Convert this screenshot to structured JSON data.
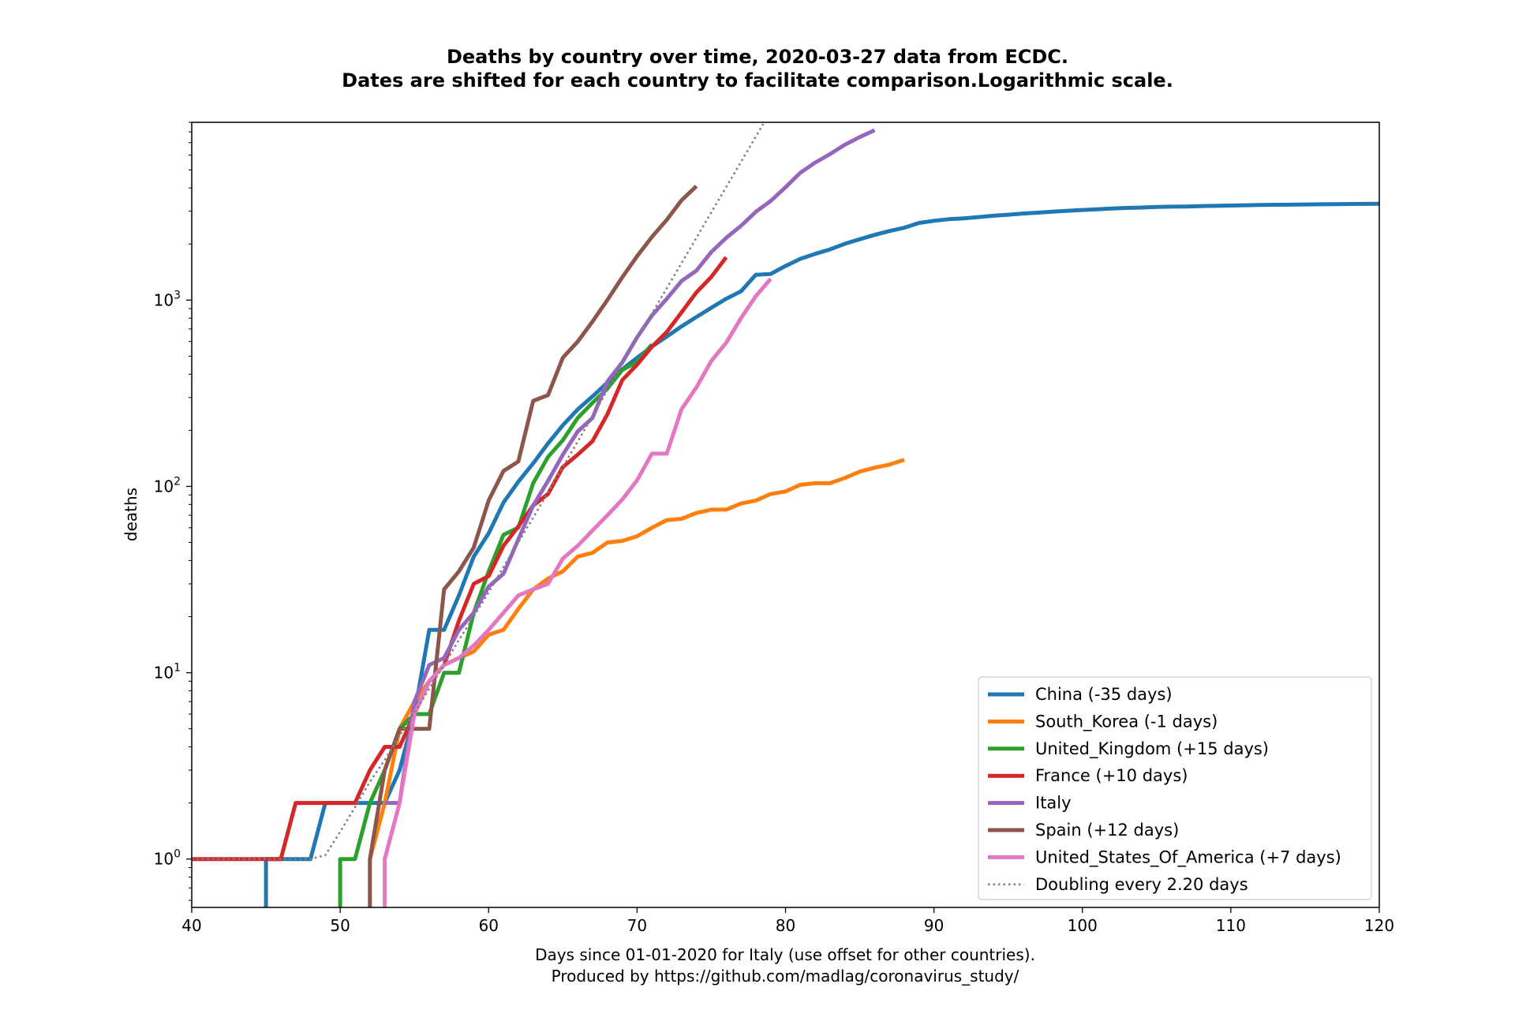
{
  "chart_data": {
    "type": "line",
    "title_line1": "Deaths by country over time, 2020-03-27 data from ECDC.",
    "title_line2": "Dates are shifted for each country to facilitate comparison.Logarithmic scale.",
    "xlabel_line1": "Days since 01-01-2020 for Italy (use offset for other countries).",
    "xlabel_line2": "Produced by https://github.com/madlag/coronavirus_study/",
    "ylabel": "deaths",
    "xlim": [
      40,
      120
    ],
    "ylim": [
      0.55,
      9000
    ],
    "yscale": "log",
    "xticks": [
      40,
      50,
      60,
      70,
      80,
      90,
      100,
      110,
      120
    ],
    "yticks": [
      {
        "value": 1,
        "base": "10",
        "exp": "0"
      },
      {
        "value": 10,
        "base": "10",
        "exp": "1"
      },
      {
        "value": 100,
        "base": "10",
        "exp": "2"
      },
      {
        "value": 1000,
        "base": "10",
        "exp": "3"
      }
    ],
    "legend_position": "lower-right",
    "series": [
      {
        "name": "China (-35 days)",
        "color": "#1f77b4",
        "style": "solid",
        "points": [
          [
            45,
            0.1
          ],
          [
            45,
            1
          ],
          [
            46,
            1
          ],
          [
            47,
            1
          ],
          [
            48,
            1
          ],
          [
            49,
            2
          ],
          [
            50,
            2
          ],
          [
            51,
            2
          ],
          [
            52,
            2
          ],
          [
            53,
            2
          ],
          [
            54,
            3
          ],
          [
            55,
            6
          ],
          [
            56,
            17
          ],
          [
            57,
            17
          ],
          [
            58,
            26
          ],
          [
            59,
            42
          ],
          [
            60,
            56
          ],
          [
            61,
            82
          ],
          [
            62,
            106
          ],
          [
            63,
            133
          ],
          [
            64,
            170
          ],
          [
            65,
            213
          ],
          [
            66,
            259
          ],
          [
            67,
            304
          ],
          [
            68,
            361
          ],
          [
            69,
            425
          ],
          [
            70,
            490
          ],
          [
            71,
            563
          ],
          [
            72,
            637
          ],
          [
            73,
            723
          ],
          [
            74,
            812
          ],
          [
            75,
            909
          ],
          [
            76,
            1017
          ],
          [
            77,
            1114
          ],
          [
            78,
            1368
          ],
          [
            79,
            1381
          ],
          [
            80,
            1524
          ],
          [
            81,
            1666
          ],
          [
            82,
            1772
          ],
          [
            83,
            1870
          ],
          [
            84,
            2006
          ],
          [
            85,
            2121
          ],
          [
            86,
            2239
          ],
          [
            87,
            2348
          ],
          [
            88,
            2445
          ],
          [
            89,
            2595
          ],
          [
            90,
            2666
          ],
          [
            91,
            2718
          ],
          [
            92,
            2747
          ],
          [
            93,
            2791
          ],
          [
            94,
            2838
          ],
          [
            95,
            2873
          ],
          [
            96,
            2915
          ],
          [
            97,
            2946
          ],
          [
            98,
            2984
          ],
          [
            99,
            3015
          ],
          [
            100,
            3045
          ],
          [
            101,
            3073
          ],
          [
            102,
            3100
          ],
          [
            103,
            3123
          ],
          [
            104,
            3140
          ],
          [
            105,
            3162
          ],
          [
            106,
            3173
          ],
          [
            107,
            3180
          ],
          [
            108,
            3194
          ],
          [
            109,
            3204
          ],
          [
            110,
            3218
          ],
          [
            111,
            3231
          ],
          [
            112,
            3242
          ],
          [
            113,
            3250
          ],
          [
            114,
            3253
          ],
          [
            115,
            3261
          ],
          [
            116,
            3267
          ],
          [
            117,
            3271
          ],
          [
            118,
            3280
          ],
          [
            119,
            3283
          ],
          [
            120,
            3290
          ]
        ]
      },
      {
        "name": "South_Korea (-1 days)",
        "color": "#ff7f0e",
        "style": "solid",
        "points": [
          [
            52,
            1
          ],
          [
            53,
            2
          ],
          [
            54,
            5
          ],
          [
            55,
            7
          ],
          [
            56,
            9
          ],
          [
            57,
            11
          ],
          [
            58,
            12
          ],
          [
            59,
            13
          ],
          [
            60,
            16
          ],
          [
            61,
            17
          ],
          [
            62,
            22
          ],
          [
            63,
            28
          ],
          [
            64,
            32
          ],
          [
            65,
            35
          ],
          [
            66,
            42
          ],
          [
            67,
            44
          ],
          [
            68,
            50
          ],
          [
            69,
            51
          ],
          [
            70,
            54
          ],
          [
            71,
            60
          ],
          [
            72,
            66
          ],
          [
            73,
            67
          ],
          [
            74,
            72
          ],
          [
            75,
            75
          ],
          [
            76,
            75
          ],
          [
            77,
            81
          ],
          [
            78,
            84
          ],
          [
            79,
            91
          ],
          [
            80,
            94
          ],
          [
            81,
            102
          ],
          [
            82,
            104
          ],
          [
            83,
            104
          ],
          [
            84,
            111
          ],
          [
            85,
            120
          ],
          [
            86,
            126
          ],
          [
            87,
            131
          ],
          [
            88,
            139
          ]
        ]
      },
      {
        "name": "United_Kingdom (+15 days)",
        "color": "#2ca02c",
        "style": "solid",
        "points": [
          [
            50,
            0.1
          ],
          [
            50,
            1
          ],
          [
            51,
            1
          ],
          [
            52,
            2
          ],
          [
            53,
            3
          ],
          [
            54,
            5
          ],
          [
            55,
            6
          ],
          [
            56,
            6
          ],
          [
            57,
            10
          ],
          [
            58,
            10
          ],
          [
            59,
            21
          ],
          [
            60,
            35
          ],
          [
            61,
            55
          ],
          [
            62,
            60
          ],
          [
            63,
            104
          ],
          [
            64,
            144
          ],
          [
            65,
            177
          ],
          [
            66,
            233
          ],
          [
            67,
            281
          ],
          [
            68,
            335
          ],
          [
            69,
            422
          ],
          [
            70,
            465
          ],
          [
            71,
            578
          ]
        ]
      },
      {
        "name": "France (+10 days)",
        "color": "#d62728",
        "style": "solid",
        "points": [
          [
            40,
            1
          ],
          [
            41,
            1
          ],
          [
            42,
            1
          ],
          [
            43,
            1
          ],
          [
            44,
            1
          ],
          [
            45,
            1
          ],
          [
            46,
            1
          ],
          [
            47,
            2
          ],
          [
            48,
            2
          ],
          [
            49,
            2
          ],
          [
            50,
            2
          ],
          [
            51,
            2
          ],
          [
            52,
            3
          ],
          [
            53,
            4
          ],
          [
            54,
            4
          ],
          [
            55,
            6
          ],
          [
            56,
            9
          ],
          [
            57,
            11
          ],
          [
            58,
            19
          ],
          [
            59,
            30
          ],
          [
            60,
            33
          ],
          [
            61,
            48
          ],
          [
            62,
            61
          ],
          [
            63,
            79
          ],
          [
            64,
            91
          ],
          [
            65,
            127
          ],
          [
            66,
            148
          ],
          [
            67,
            175
          ],
          [
            68,
            244
          ],
          [
            69,
            372
          ],
          [
            70,
            450
          ],
          [
            71,
            562
          ],
          [
            72,
            674
          ],
          [
            73,
            860
          ],
          [
            74,
            1100
          ],
          [
            75,
            1331
          ],
          [
            76,
            1696
          ]
        ]
      },
      {
        "name": "Italy",
        "color": "#9467bd",
        "style": "solid",
        "points": [
          [
            53,
            2
          ],
          [
            54,
            2
          ],
          [
            55,
            7
          ],
          [
            56,
            11
          ],
          [
            57,
            12
          ],
          [
            58,
            17
          ],
          [
            59,
            21
          ],
          [
            60,
            29
          ],
          [
            61,
            34
          ],
          [
            62,
            52
          ],
          [
            63,
            79
          ],
          [
            64,
            107
          ],
          [
            65,
            148
          ],
          [
            66,
            197
          ],
          [
            67,
            233
          ],
          [
            68,
            366
          ],
          [
            69,
            463
          ],
          [
            70,
            631
          ],
          [
            71,
            827
          ],
          [
            72,
            1016
          ],
          [
            73,
            1266
          ],
          [
            74,
            1441
          ],
          [
            75,
            1809
          ],
          [
            76,
            2158
          ],
          [
            77,
            2503
          ],
          [
            78,
            2978
          ],
          [
            79,
            3405
          ],
          [
            80,
            4032
          ],
          [
            81,
            4825
          ],
          [
            82,
            5476
          ],
          [
            83,
            6077
          ],
          [
            84,
            6820
          ],
          [
            85,
            7503
          ],
          [
            86,
            8165
          ]
        ]
      },
      {
        "name": "Spain (+12 days)",
        "color": "#8c564b",
        "style": "solid",
        "points": [
          [
            52,
            0.1
          ],
          [
            52,
            1
          ],
          [
            53,
            3
          ],
          [
            54,
            5
          ],
          [
            55,
            5
          ],
          [
            56,
            5
          ],
          [
            57,
            28
          ],
          [
            58,
            35
          ],
          [
            59,
            47
          ],
          [
            60,
            84
          ],
          [
            61,
            121
          ],
          [
            62,
            136
          ],
          [
            63,
            288
          ],
          [
            64,
            309
          ],
          [
            65,
            491
          ],
          [
            66,
            598
          ],
          [
            67,
            767
          ],
          [
            68,
            1002
          ],
          [
            69,
            1326
          ],
          [
            70,
            1720
          ],
          [
            71,
            2182
          ],
          [
            72,
            2696
          ],
          [
            73,
            3434
          ],
          [
            74,
            4089
          ]
        ]
      },
      {
        "name": "United_States_Of_America (+7 days)",
        "color": "#e377c2",
        "style": "solid",
        "points": [
          [
            53,
            0.1
          ],
          [
            53,
            1
          ],
          [
            54,
            2
          ],
          [
            55,
            6
          ],
          [
            56,
            9
          ],
          [
            57,
            11
          ],
          [
            58,
            12
          ],
          [
            59,
            14
          ],
          [
            60,
            17
          ],
          [
            61,
            21
          ],
          [
            62,
            26
          ],
          [
            63,
            28
          ],
          [
            64,
            30
          ],
          [
            65,
            41
          ],
          [
            66,
            48
          ],
          [
            67,
            58
          ],
          [
            68,
            70
          ],
          [
            69,
            85
          ],
          [
            70,
            108
          ],
          [
            71,
            150
          ],
          [
            72,
            150
          ],
          [
            73,
            260
          ],
          [
            74,
            340
          ],
          [
            75,
            471
          ],
          [
            76,
            590
          ],
          [
            77,
            800
          ],
          [
            78,
            1050
          ],
          [
            79,
            1300
          ]
        ]
      },
      {
        "name": "Doubling every 2.20 days",
        "color": "#7f7f7f",
        "style": "dotted",
        "points": [
          [
            40,
            1
          ],
          [
            48,
            1
          ],
          [
            49,
            1.05
          ],
          [
            50,
            1.4
          ],
          [
            51,
            1.9
          ],
          [
            52,
            2.6
          ],
          [
            53,
            3.4
          ],
          [
            54,
            4.6
          ],
          [
            55,
            6.1
          ],
          [
            56,
            8.2
          ],
          [
            57,
            11
          ],
          [
            58,
            15
          ],
          [
            59,
            20
          ],
          [
            60,
            27
          ],
          [
            61,
            37
          ],
          [
            62,
            50
          ],
          [
            63,
            68
          ],
          [
            64,
            93
          ],
          [
            65,
            127
          ],
          [
            66,
            174
          ],
          [
            67,
            239
          ],
          [
            68,
            328
          ],
          [
            69,
            452
          ],
          [
            70,
            620
          ],
          [
            71,
            848
          ],
          [
            72,
            1157
          ],
          [
            73,
            1580
          ],
          [
            74,
            2162
          ],
          [
            75,
            2955
          ],
          [
            76,
            4040
          ],
          [
            77,
            5520
          ],
          [
            78,
            7550
          ],
          [
            78.5,
            8830
          ]
        ]
      }
    ]
  }
}
